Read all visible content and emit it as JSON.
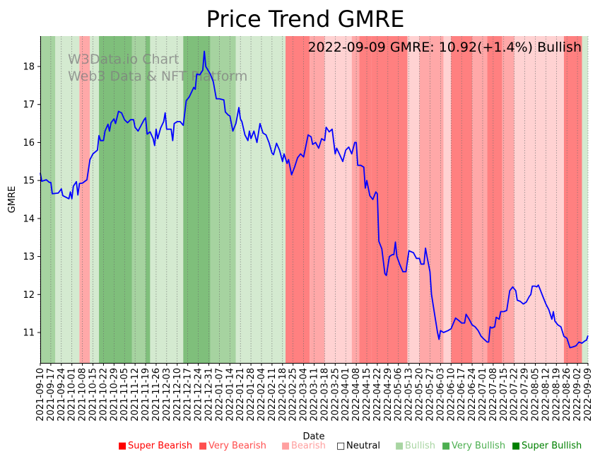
{
  "chart_data": {
    "type": "line",
    "title": "Price Trend GMRE",
    "xlabel": "Date",
    "ylabel": "GMRE",
    "ylim": [
      10.2,
      18.8
    ],
    "xlim": [
      "2021-09-10",
      "2022-09-09"
    ],
    "yticks": [
      11,
      12,
      13,
      14,
      15,
      16,
      17,
      18
    ],
    "xticks": [
      "2021-09-10",
      "2021-09-17",
      "2021-09-24",
      "2021-10-01",
      "2021-10-08",
      "2021-10-15",
      "2021-10-22",
      "2021-10-29",
      "2021-11-05",
      "2021-11-12",
      "2021-11-19",
      "2021-11-26",
      "2021-12-03",
      "2021-12-10",
      "2021-12-17",
      "2021-12-24",
      "2021-12-31",
      "2022-01-07",
      "2022-01-14",
      "2022-01-21",
      "2022-01-28",
      "2022-02-04",
      "2022-02-11",
      "2022-02-18",
      "2022-02-25",
      "2022-03-04",
      "2022-03-11",
      "2022-03-18",
      "2022-03-25",
      "2022-04-01",
      "2022-04-08",
      "2022-04-15",
      "2022-04-22",
      "2022-04-29",
      "2022-05-06",
      "2022-05-13",
      "2022-05-20",
      "2022-05-27",
      "2022-06-03",
      "2022-06-10",
      "2022-06-17",
      "2022-06-24",
      "2022-07-01",
      "2022-07-08",
      "2022-07-15",
      "2022-07-22",
      "2022-07-29",
      "2022-08-05",
      "2022-08-12",
      "2022-08-19",
      "2022-08-26",
      "2022-09-02",
      "2022-09-09"
    ],
    "annotation": "2022-09-09 GMRE: 10.92(+1.4%) Bullish",
    "watermark": [
      "W3Data.io Chart",
      "Web3 Data & NFT Platform"
    ],
    "legend": [
      {
        "label": "Super Bearish",
        "color": "#ff0000"
      },
      {
        "label": "Very Bearish",
        "color": "#ff4d4d"
      },
      {
        "label": "Bearish",
        "color": "#ff9f9f"
      },
      {
        "label": "Neutral",
        "color": "#ffffff"
      },
      {
        "label": "Bullish",
        "color": "#a8d5a2"
      },
      {
        "label": "Very Bullish",
        "color": "#4caf50"
      },
      {
        "label": "Super Bullish",
        "color": "#008000"
      }
    ],
    "regime_colors": {
      "bull_light": "#d4ead0",
      "bull_mid": "#a6d3a0",
      "bull_dark": "#7fbf7b",
      "bear_light": "#ffd2d2",
      "bear_mid": "#ffa8a8",
      "bear_dark": "#ff8080"
    },
    "regimes": [
      {
        "start": "2021-09-10",
        "end": "2021-09-20",
        "color": "bull_mid"
      },
      {
        "start": "2021-09-20",
        "end": "2021-10-06",
        "color": "bull_light"
      },
      {
        "start": "2021-10-06",
        "end": "2021-10-13",
        "color": "bear_mid"
      },
      {
        "start": "2021-10-13",
        "end": "2021-10-19",
        "color": "bull_light"
      },
      {
        "start": "2021-10-19",
        "end": "2021-11-10",
        "color": "bull_dark"
      },
      {
        "start": "2021-11-10",
        "end": "2021-11-19",
        "color": "bull_mid"
      },
      {
        "start": "2021-11-19",
        "end": "2021-11-22",
        "color": "bull_dark"
      },
      {
        "start": "2021-11-22",
        "end": "2021-12-14",
        "color": "bull_light"
      },
      {
        "start": "2021-12-14",
        "end": "2022-01-01",
        "color": "bull_dark"
      },
      {
        "start": "2022-01-01",
        "end": "2022-01-18",
        "color": "bull_mid"
      },
      {
        "start": "2022-01-18",
        "end": "2022-02-20",
        "color": "bull_light"
      },
      {
        "start": "2022-02-20",
        "end": "2022-03-08",
        "color": "bear_dark"
      },
      {
        "start": "2022-03-08",
        "end": "2022-03-18",
        "color": "bear_mid"
      },
      {
        "start": "2022-03-18",
        "end": "2022-04-05",
        "color": "bear_light"
      },
      {
        "start": "2022-04-05",
        "end": "2022-04-10",
        "color": "bear_mid"
      },
      {
        "start": "2022-04-10",
        "end": "2022-04-18",
        "color": "bear_dark"
      },
      {
        "start": "2022-04-18",
        "end": "2022-05-12",
        "color": "bear_dark"
      },
      {
        "start": "2022-05-12",
        "end": "2022-05-20",
        "color": "bear_light"
      },
      {
        "start": "2022-05-20",
        "end": "2022-06-05",
        "color": "bear_mid"
      },
      {
        "start": "2022-06-05",
        "end": "2022-06-10",
        "color": "bear_light"
      },
      {
        "start": "2022-06-10",
        "end": "2022-06-24",
        "color": "bear_dark"
      },
      {
        "start": "2022-06-24",
        "end": "2022-07-04",
        "color": "bear_mid"
      },
      {
        "start": "2022-07-04",
        "end": "2022-07-14",
        "color": "bear_dark"
      },
      {
        "start": "2022-07-14",
        "end": "2022-07-22",
        "color": "bear_mid"
      },
      {
        "start": "2022-07-22",
        "end": "2022-08-24",
        "color": "bear_light"
      },
      {
        "start": "2022-08-24",
        "end": "2022-09-05",
        "color": "bear_dark"
      },
      {
        "start": "2022-09-05",
        "end": "2022-09-09",
        "color": "bull_light"
      }
    ],
    "series": [
      {
        "color": "#0000ff",
        "points": [
          [
            "2021-09-10",
            15.2
          ],
          [
            "2021-09-11",
            14.98
          ],
          [
            "2021-09-14",
            15.02
          ],
          [
            "2021-09-16",
            14.95
          ],
          [
            "2021-09-17",
            14.95
          ],
          [
            "2021-09-18",
            14.65
          ],
          [
            "2021-09-22",
            14.67
          ],
          [
            "2021-09-24",
            14.78
          ],
          [
            "2021-09-25",
            14.6
          ],
          [
            "2021-09-29",
            14.52
          ],
          [
            "2021-09-30",
            14.7
          ],
          [
            "2021-10-01",
            14.52
          ],
          [
            "2021-10-02",
            14.85
          ],
          [
            "2021-10-04",
            14.97
          ],
          [
            "2021-10-05",
            14.62
          ],
          [
            "2021-10-06",
            14.92
          ],
          [
            "2021-10-08",
            14.93
          ],
          [
            "2021-10-11",
            15.02
          ],
          [
            "2021-10-13",
            15.55
          ],
          [
            "2021-10-15",
            15.7
          ],
          [
            "2021-10-18",
            15.8
          ],
          [
            "2021-10-19",
            16.18
          ],
          [
            "2021-10-20",
            16.05
          ],
          [
            "2021-10-22",
            16.05
          ],
          [
            "2021-10-23",
            16.3
          ],
          [
            "2021-10-25",
            16.48
          ],
          [
            "2021-10-26",
            16.3
          ],
          [
            "2021-10-27",
            16.52
          ],
          [
            "2021-10-29",
            16.62
          ],
          [
            "2021-10-30",
            16.5
          ],
          [
            "2021-11-01",
            16.82
          ],
          [
            "2021-11-03",
            16.78
          ],
          [
            "2021-11-05",
            16.6
          ],
          [
            "2021-11-07",
            16.52
          ],
          [
            "2021-11-09",
            16.6
          ],
          [
            "2021-11-11",
            16.6
          ],
          [
            "2021-11-12",
            16.4
          ],
          [
            "2021-11-14",
            16.3
          ],
          [
            "2021-11-16",
            16.45
          ],
          [
            "2021-11-18",
            16.6
          ],
          [
            "2021-11-19",
            16.65
          ],
          [
            "2021-11-20",
            16.22
          ],
          [
            "2021-11-22",
            16.28
          ],
          [
            "2021-11-24",
            16.1
          ],
          [
            "2021-11-25",
            15.92
          ],
          [
            "2021-11-26",
            16.35
          ],
          [
            "2021-11-27",
            16.1
          ],
          [
            "2021-11-29",
            16.38
          ],
          [
            "2021-12-01",
            16.55
          ],
          [
            "2021-12-02",
            16.78
          ],
          [
            "2021-12-03",
            16.35
          ],
          [
            "2021-12-06",
            16.35
          ],
          [
            "2021-12-07",
            16.05
          ],
          [
            "2021-12-08",
            16.5
          ],
          [
            "2021-12-10",
            16.55
          ],
          [
            "2021-12-12",
            16.55
          ],
          [
            "2021-12-14",
            16.45
          ],
          [
            "2021-12-16",
            17.1
          ],
          [
            "2021-12-18",
            17.2
          ],
          [
            "2021-12-21",
            17.45
          ],
          [
            "2021-12-22",
            17.4
          ],
          [
            "2021-12-23",
            17.8
          ],
          [
            "2021-12-25",
            17.78
          ],
          [
            "2021-12-27",
            17.9
          ],
          [
            "2021-12-28",
            18.4
          ],
          [
            "2021-12-29",
            18.0
          ],
          [
            "2022-01-01",
            17.8
          ],
          [
            "2022-01-03",
            17.6
          ],
          [
            "2022-01-05",
            17.15
          ],
          [
            "2022-01-07",
            17.15
          ],
          [
            "2022-01-10",
            17.12
          ],
          [
            "2022-01-11",
            16.8
          ],
          [
            "2022-01-13",
            16.72
          ],
          [
            "2022-01-14",
            16.7
          ],
          [
            "2022-01-16",
            16.3
          ],
          [
            "2022-01-18",
            16.5
          ],
          [
            "2022-01-20",
            16.92
          ],
          [
            "2022-01-21",
            16.62
          ],
          [
            "2022-01-22",
            16.55
          ],
          [
            "2022-01-24",
            16.2
          ],
          [
            "2022-01-26",
            16.05
          ],
          [
            "2022-01-27",
            16.3
          ],
          [
            "2022-01-28",
            16.1
          ],
          [
            "2022-01-30",
            16.3
          ],
          [
            "2022-02-01",
            16.0
          ],
          [
            "2022-02-03",
            16.5
          ],
          [
            "2022-02-05",
            16.25
          ],
          [
            "2022-02-07",
            16.2
          ],
          [
            "2022-02-09",
            16.0
          ],
          [
            "2022-02-11",
            15.72
          ],
          [
            "2022-02-12",
            15.68
          ],
          [
            "2022-02-14",
            15.98
          ],
          [
            "2022-02-16",
            15.8
          ],
          [
            "2022-02-18",
            15.5
          ],
          [
            "2022-02-19",
            15.7
          ],
          [
            "2022-02-21",
            15.45
          ],
          [
            "2022-02-22",
            15.55
          ],
          [
            "2022-02-24",
            15.15
          ],
          [
            "2022-02-26",
            15.35
          ],
          [
            "2022-02-28",
            15.6
          ],
          [
            "2022-03-02",
            15.7
          ],
          [
            "2022-03-04",
            15.62
          ],
          [
            "2022-03-07",
            16.2
          ],
          [
            "2022-03-09",
            16.15
          ],
          [
            "2022-03-10",
            15.95
          ],
          [
            "2022-03-12",
            16.0
          ],
          [
            "2022-03-14",
            15.85
          ],
          [
            "2022-03-16",
            16.1
          ],
          [
            "2022-03-18",
            16.05
          ],
          [
            "2022-03-19",
            16.4
          ],
          [
            "2022-03-21",
            16.28
          ],
          [
            "2022-03-23",
            16.35
          ],
          [
            "2022-03-25",
            15.7
          ],
          [
            "2022-03-26",
            15.85
          ],
          [
            "2022-03-28",
            15.68
          ],
          [
            "2022-03-30",
            15.5
          ],
          [
            "2022-04-01",
            15.8
          ],
          [
            "2022-04-03",
            15.88
          ],
          [
            "2022-04-05",
            15.7
          ],
          [
            "2022-04-07",
            16.0
          ],
          [
            "2022-04-08",
            16.0
          ],
          [
            "2022-04-09",
            15.4
          ],
          [
            "2022-04-11",
            15.4
          ],
          [
            "2022-04-13",
            15.35
          ],
          [
            "2022-04-14",
            14.8
          ],
          [
            "2022-04-15",
            15.0
          ],
          [
            "2022-04-17",
            14.6
          ],
          [
            "2022-04-19",
            14.5
          ],
          [
            "2022-04-21",
            14.7
          ],
          [
            "2022-04-22",
            14.65
          ],
          [
            "2022-04-23",
            13.4
          ],
          [
            "2022-04-25",
            13.2
          ],
          [
            "2022-04-27",
            12.55
          ],
          [
            "2022-04-28",
            12.5
          ],
          [
            "2022-04-30",
            13.0
          ],
          [
            "2022-05-02",
            13.05
          ],
          [
            "2022-05-03",
            13.05
          ],
          [
            "2022-05-04",
            13.38
          ],
          [
            "2022-05-05",
            13.0
          ],
          [
            "2022-05-07",
            12.78
          ],
          [
            "2022-05-09",
            12.6
          ],
          [
            "2022-05-11",
            12.6
          ],
          [
            "2022-05-13",
            13.15
          ],
          [
            "2022-05-16",
            13.1
          ],
          [
            "2022-05-18",
            12.95
          ],
          [
            "2022-05-20",
            12.95
          ],
          [
            "2022-05-21",
            12.8
          ],
          [
            "2022-05-23",
            12.8
          ],
          [
            "2022-05-24",
            13.22
          ],
          [
            "2022-05-25",
            13.0
          ],
          [
            "2022-05-27",
            12.6
          ],
          [
            "2022-05-28",
            12.0
          ],
          [
            "2022-05-30",
            11.5
          ],
          [
            "2022-06-01",
            11.0
          ],
          [
            "2022-06-02",
            10.82
          ],
          [
            "2022-06-03",
            11.05
          ],
          [
            "2022-06-05",
            11.0
          ],
          [
            "2022-06-08",
            11.05
          ],
          [
            "2022-06-10",
            11.1
          ],
          [
            "2022-06-13",
            11.38
          ],
          [
            "2022-06-15",
            11.32
          ],
          [
            "2022-06-17",
            11.25
          ],
          [
            "2022-06-19",
            11.25
          ],
          [
            "2022-06-20",
            11.48
          ],
          [
            "2022-06-22",
            11.35
          ],
          [
            "2022-06-24",
            11.2
          ],
          [
            "2022-06-26",
            11.15
          ],
          [
            "2022-06-28",
            11.05
          ],
          [
            "2022-06-30",
            10.9
          ],
          [
            "2022-07-02",
            10.82
          ],
          [
            "2022-07-04",
            10.75
          ],
          [
            "2022-07-05",
            10.75
          ],
          [
            "2022-07-06",
            11.15
          ],
          [
            "2022-07-07",
            11.12
          ],
          [
            "2022-07-09",
            11.15
          ],
          [
            "2022-07-10",
            11.4
          ],
          [
            "2022-07-12",
            11.35
          ],
          [
            "2022-07-13",
            11.55
          ],
          [
            "2022-07-15",
            11.55
          ],
          [
            "2022-07-17",
            11.58
          ],
          [
            "2022-07-19",
            12.1
          ],
          [
            "2022-07-21",
            12.2
          ],
          [
            "2022-07-23",
            12.1
          ],
          [
            "2022-07-24",
            11.85
          ],
          [
            "2022-07-26",
            11.82
          ],
          [
            "2022-07-28",
            11.75
          ],
          [
            "2022-07-30",
            11.8
          ],
          [
            "2022-08-01",
            11.95
          ],
          [
            "2022-08-02",
            12.0
          ],
          [
            "2022-08-03",
            12.22
          ],
          [
            "2022-08-05",
            12.22
          ],
          [
            "2022-08-06",
            12.2
          ],
          [
            "2022-08-07",
            12.25
          ],
          [
            "2022-08-08",
            12.15
          ],
          [
            "2022-08-10",
            11.95
          ],
          [
            "2022-08-12",
            11.75
          ],
          [
            "2022-08-14",
            11.6
          ],
          [
            "2022-08-16",
            11.35
          ],
          [
            "2022-08-17",
            11.55
          ],
          [
            "2022-08-18",
            11.3
          ],
          [
            "2022-08-20",
            11.2
          ],
          [
            "2022-08-22",
            11.15
          ],
          [
            "2022-08-24",
            10.9
          ],
          [
            "2022-08-26",
            10.85
          ],
          [
            "2022-08-28",
            10.6
          ],
          [
            "2022-08-30",
            10.62
          ],
          [
            "2022-09-01",
            10.65
          ],
          [
            "2022-09-03",
            10.75
          ],
          [
            "2022-09-05",
            10.72
          ],
          [
            "2022-09-07",
            10.78
          ],
          [
            "2022-09-08",
            10.8
          ],
          [
            "2022-09-09",
            10.92
          ]
        ]
      }
    ]
  }
}
